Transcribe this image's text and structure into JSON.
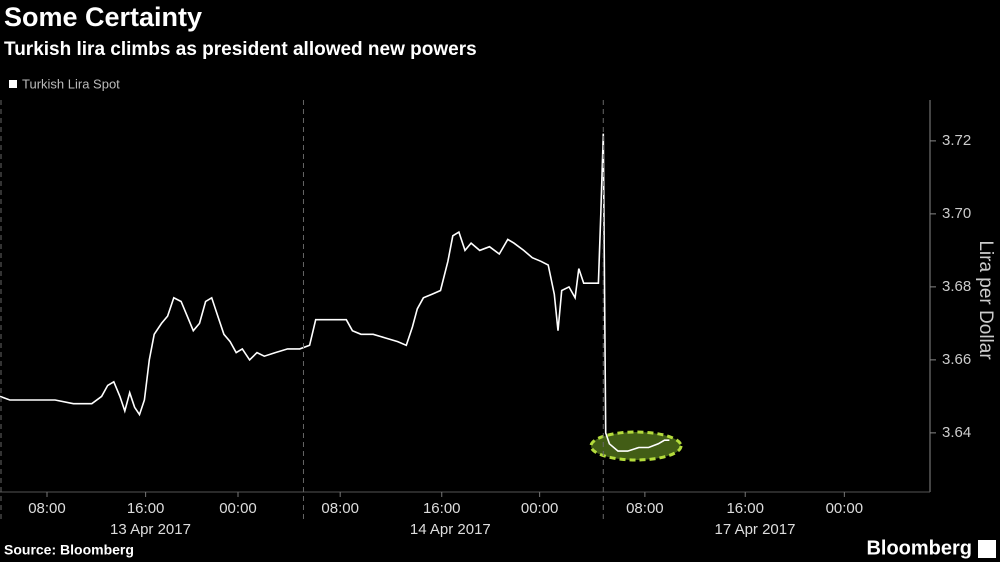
{
  "chart_data": {
    "type": "line",
    "title": "Some Certainty",
    "subtitle": "Turkish lira climbs as president allowed new powers",
    "source": "Source: Bloomberg",
    "brand": "Bloomberg",
    "y_axis_label": "Lira per Dollar",
    "xlim": [
      0,
      76
    ],
    "ylim": [
      3.6238,
      3.7312
    ],
    "yticks": [
      3.64,
      3.66,
      3.68,
      {
        "value": 3.7,
        "label": "3.70"
      },
      3.72
    ],
    "xticks": [
      {
        "value": 3.84,
        "label": "08:00"
      },
      {
        "value": 11.9,
        "label": "16:00"
      },
      {
        "value": 19.45,
        "label": "00:00"
      },
      {
        "value": 27.8,
        "label": "08:00"
      },
      {
        "value": 36.1,
        "label": "16:00"
      },
      {
        "value": 44.1,
        "label": "00:00"
      },
      {
        "value": 52.7,
        "label": "08:00"
      },
      {
        "value": 60.9,
        "label": "16:00"
      },
      {
        "value": 69.0,
        "label": "00:00"
      }
    ],
    "date_labels": [
      {
        "value": 12.3,
        "label": "13 Apr 2017"
      },
      {
        "value": 36.8,
        "label": "14 Apr 2017"
      },
      {
        "value": 61.7,
        "label": "17 Apr 2017"
      }
    ],
    "separators": [
      0,
      24.8,
      49.3
    ],
    "series": [
      {
        "name": "Turkish Lira Spot",
        "color": "#ffffff",
        "x": [
          0,
          0.8,
          1.6,
          3,
          4.5,
          6,
          7.5,
          8.3,
          8.8,
          9.3,
          9.8,
          10.2,
          10.6,
          11.0,
          11.4,
          11.8,
          12.2,
          12.6,
          13.2,
          13.7,
          14.2,
          14.8,
          15.3,
          15.8,
          16.3,
          16.8,
          17.3,
          17.8,
          18.3,
          18.8,
          19.3,
          19.8,
          20.4,
          21.0,
          21.6,
          22.5,
          23.5,
          24.5,
          25.3,
          25.8,
          26.5,
          27.5,
          28.3,
          28.8,
          29.5,
          30.5,
          31.5,
          32.5,
          33.2,
          33.7,
          34.1,
          34.6,
          35.3,
          36.0,
          36.6,
          37.0,
          37.5,
          38.0,
          38.5,
          39.2,
          40.0,
          40.8,
          41.5,
          42.0,
          42.8,
          43.5,
          44.2,
          44.8,
          45.3,
          45.6,
          45.9,
          46.5,
          47.0,
          47.3,
          47.7,
          48.3,
          48.9,
          49.1,
          49.3,
          49.5,
          49.8,
          50.5,
          51.3,
          52.2,
          53.0,
          53.8,
          54.3,
          54.7
        ],
        "values": [
          3.65,
          3.649,
          3.649,
          3.649,
          3.649,
          3.648,
          3.648,
          3.65,
          3.653,
          3.654,
          3.65,
          3.646,
          3.651,
          3.647,
          3.645,
          3.649,
          3.66,
          3.667,
          3.67,
          3.672,
          3.677,
          3.676,
          3.672,
          3.668,
          3.67,
          3.676,
          3.677,
          3.672,
          3.667,
          3.665,
          3.662,
          3.663,
          3.66,
          3.662,
          3.661,
          3.662,
          3.663,
          3.663,
          3.664,
          3.671,
          3.671,
          3.671,
          3.671,
          3.668,
          3.667,
          3.667,
          3.666,
          3.665,
          3.664,
          3.669,
          3.674,
          3.677,
          3.678,
          3.679,
          3.687,
          3.694,
          3.695,
          3.69,
          3.692,
          3.69,
          3.691,
          3.689,
          3.693,
          3.692,
          3.69,
          3.688,
          3.687,
          3.686,
          3.678,
          3.668,
          3.679,
          3.68,
          3.677,
          3.685,
          3.681,
          3.681,
          3.681,
          3.7,
          3.722,
          3.64,
          3.637,
          3.635,
          3.635,
          3.636,
          3.636,
          3.637,
          3.638,
          3.638
        ]
      }
    ]
  }
}
